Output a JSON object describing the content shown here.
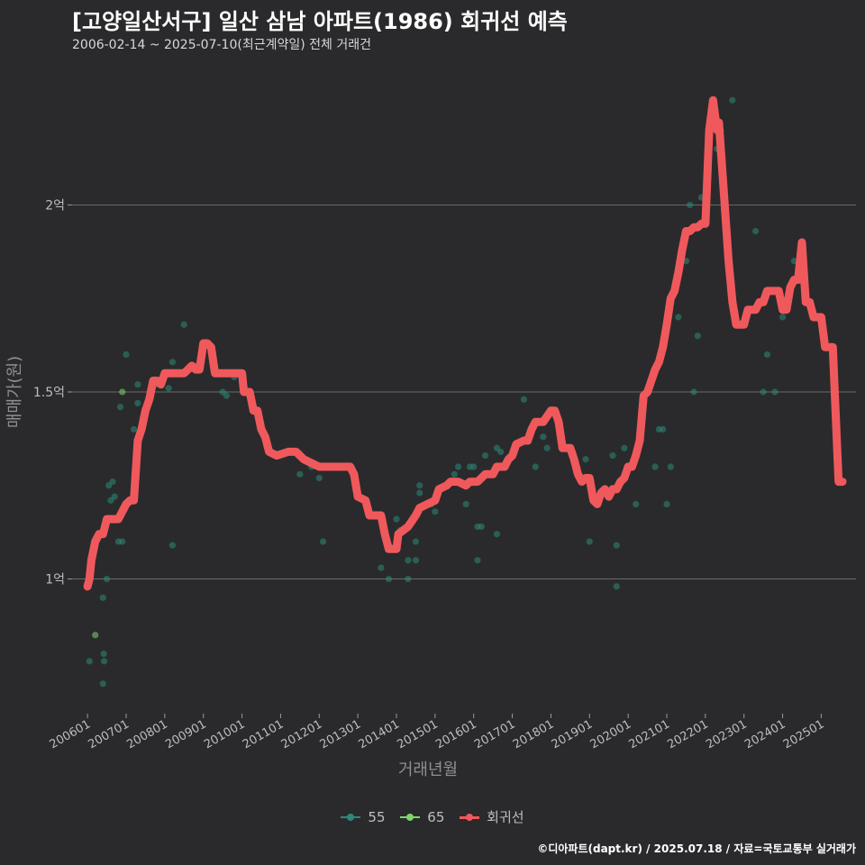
{
  "header": {
    "title": "[고양일산서구] 일산 삼남 아파트(1986) 회귀선 예측",
    "subtitle": "2006-02-14 ~ 2025-07-10(최근계약일) 전체 거래건"
  },
  "footer": {
    "credit": "©디아파트(dapt.kr) / 2025.07.18 / 자료=국토교통부 실거래가"
  },
  "legend": {
    "items": [
      {
        "label": "55",
        "color": "#2a8a7a"
      },
      {
        "label": "65",
        "color": "#7fd36b"
      },
      {
        "label": "회귀선",
        "color": "#f0595c"
      }
    ]
  },
  "chart_data": {
    "type": "scatter",
    "title": "[고양일산서구] 일산 삼남 아파트(1986) 회귀선 예측",
    "xlabel": "거래년월",
    "ylabel": "매매가(원)",
    "x_tick_labels": [
      "200601",
      "200701",
      "200801",
      "200901",
      "201001",
      "201101",
      "201201",
      "201301",
      "201401",
      "201501",
      "201601",
      "201701",
      "201801",
      "201901",
      "202001",
      "202101",
      "202201",
      "202301",
      "202401",
      "202501"
    ],
    "y_ticks": [
      {
        "value": 1.0,
        "label": "1억"
      },
      {
        "value": 1.5,
        "label": "1.5억"
      },
      {
        "value": 2.0,
        "label": "2억"
      }
    ],
    "xlim": [
      2005.6,
      2025.9
    ],
    "ylim": [
      0.64,
      2.36
    ],
    "y_unit": "억",
    "grid": true,
    "legend_position": "bottom",
    "series": [
      {
        "name": "55",
        "kind": "points",
        "color": "#2a8a7a",
        "points": [
          [
            2006.05,
            0.78
          ],
          [
            2006.4,
            0.72
          ],
          [
            2006.42,
            0.8
          ],
          [
            2006.43,
            0.78
          ],
          [
            2006.4,
            0.95
          ],
          [
            2006.5,
            1.0
          ],
          [
            2006.55,
            1.25
          ],
          [
            2006.6,
            1.21
          ],
          [
            2006.65,
            1.26
          ],
          [
            2006.7,
            1.22
          ],
          [
            2006.8,
            1.1
          ],
          [
            2006.85,
            1.46
          ],
          [
            2006.9,
            1.1
          ],
          [
            2007.0,
            1.6
          ],
          [
            2007.2,
            1.4
          ],
          [
            2007.3,
            1.52
          ],
          [
            2007.3,
            1.47
          ],
          [
            2007.5,
            1.44
          ],
          [
            2007.8,
            1.52
          ],
          [
            2008.1,
            1.51
          ],
          [
            2008.2,
            1.09
          ],
          [
            2008.2,
            1.58
          ],
          [
            2008.5,
            1.68
          ],
          [
            2008.8,
            1.57
          ],
          [
            2009.5,
            1.5
          ],
          [
            2009.6,
            1.49
          ],
          [
            2009.8,
            1.54
          ],
          [
            2011.5,
            1.28
          ],
          [
            2011.8,
            1.3
          ],
          [
            2012.0,
            1.27
          ],
          [
            2012.1,
            1.1
          ],
          [
            2013.3,
            1.17
          ],
          [
            2013.6,
            1.03
          ],
          [
            2013.8,
            1.0
          ],
          [
            2014.0,
            1.16
          ],
          [
            2014.1,
            1.13
          ],
          [
            2014.3,
            1.0
          ],
          [
            2014.3,
            1.05
          ],
          [
            2014.5,
            1.05
          ],
          [
            2014.5,
            1.1
          ],
          [
            2014.6,
            1.23
          ],
          [
            2014.6,
            1.25
          ],
          [
            2014.9,
            1.2
          ],
          [
            2015.0,
            1.18
          ],
          [
            2015.3,
            1.25
          ],
          [
            2015.5,
            1.28
          ],
          [
            2015.6,
            1.3
          ],
          [
            2015.8,
            1.2
          ],
          [
            2015.9,
            1.3
          ],
          [
            2016.0,
            1.3
          ],
          [
            2016.1,
            1.05
          ],
          [
            2016.1,
            1.14
          ],
          [
            2016.2,
            1.14
          ],
          [
            2016.3,
            1.33
          ],
          [
            2016.6,
            1.12
          ],
          [
            2016.6,
            1.35
          ],
          [
            2016.7,
            1.34
          ],
          [
            2017.3,
            1.48
          ],
          [
            2017.6,
            1.3
          ],
          [
            2017.8,
            1.38
          ],
          [
            2017.9,
            1.35
          ],
          [
            2018.9,
            1.32
          ],
          [
            2019.0,
            1.1
          ],
          [
            2019.6,
            1.33
          ],
          [
            2019.7,
            0.98
          ],
          [
            2019.7,
            1.09
          ],
          [
            2019.9,
            1.35
          ],
          [
            2020.0,
            1.3
          ],
          [
            2020.2,
            1.2
          ],
          [
            2020.3,
            1.37
          ],
          [
            2020.7,
            1.3
          ],
          [
            2020.8,
            1.4
          ],
          [
            2020.9,
            1.4
          ],
          [
            2021.0,
            1.2
          ],
          [
            2021.1,
            1.3
          ],
          [
            2021.3,
            1.7
          ],
          [
            2021.5,
            1.85
          ],
          [
            2021.6,
            2.0
          ],
          [
            2021.7,
            1.5
          ],
          [
            2021.8,
            1.65
          ],
          [
            2021.9,
            2.02
          ],
          [
            2022.3,
            2.15
          ],
          [
            2022.4,
            2.2
          ],
          [
            2022.7,
            2.28
          ],
          [
            2023.3,
            1.93
          ],
          [
            2023.5,
            1.5
          ],
          [
            2023.6,
            1.6
          ],
          [
            2023.8,
            1.5
          ],
          [
            2024.0,
            1.7
          ],
          [
            2024.3,
            1.85
          ]
        ]
      },
      {
        "name": "65",
        "kind": "points",
        "color": "#7fd36b",
        "points": [
          [
            2006.2,
            0.85
          ],
          [
            2006.9,
            1.5
          ]
        ]
      },
      {
        "name": "회귀선",
        "kind": "line",
        "color": "#f0595c",
        "points": [
          [
            2006.0,
            0.98
          ],
          [
            2006.05,
            1.0
          ],
          [
            2006.1,
            1.05
          ],
          [
            2006.2,
            1.1
          ],
          [
            2006.3,
            1.12
          ],
          [
            2006.4,
            1.12
          ],
          [
            2006.5,
            1.16
          ],
          [
            2006.6,
            1.16
          ],
          [
            2006.8,
            1.16
          ],
          [
            2006.9,
            1.18
          ],
          [
            2007.0,
            1.2
          ],
          [
            2007.1,
            1.21
          ],
          [
            2007.2,
            1.21
          ],
          [
            2007.3,
            1.37
          ],
          [
            2007.4,
            1.4
          ],
          [
            2007.5,
            1.45
          ],
          [
            2007.6,
            1.48
          ],
          [
            2007.7,
            1.53
          ],
          [
            2007.8,
            1.53
          ],
          [
            2007.9,
            1.52
          ],
          [
            2008.0,
            1.55
          ],
          [
            2008.2,
            1.55
          ],
          [
            2008.5,
            1.55
          ],
          [
            2008.6,
            1.56
          ],
          [
            2008.7,
            1.57
          ],
          [
            2008.8,
            1.56
          ],
          [
            2008.9,
            1.56
          ],
          [
            2009.0,
            1.63
          ],
          [
            2009.1,
            1.63
          ],
          [
            2009.2,
            1.62
          ],
          [
            2009.3,
            1.55
          ],
          [
            2009.6,
            1.55
          ],
          [
            2010.0,
            1.55
          ],
          [
            2010.05,
            1.5
          ],
          [
            2010.2,
            1.5
          ],
          [
            2010.3,
            1.45
          ],
          [
            2010.4,
            1.45
          ],
          [
            2010.5,
            1.4
          ],
          [
            2010.6,
            1.38
          ],
          [
            2010.7,
            1.34
          ],
          [
            2010.9,
            1.33
          ],
          [
            2011.2,
            1.34
          ],
          [
            2011.4,
            1.34
          ],
          [
            2011.5,
            1.33
          ],
          [
            2011.6,
            1.32
          ],
          [
            2011.8,
            1.31
          ],
          [
            2012.0,
            1.3
          ],
          [
            2012.2,
            1.3
          ],
          [
            2012.4,
            1.3
          ],
          [
            2012.6,
            1.3
          ],
          [
            2012.8,
            1.3
          ],
          [
            2012.9,
            1.28
          ],
          [
            2013.0,
            1.22
          ],
          [
            2013.2,
            1.21
          ],
          [
            2013.3,
            1.17
          ],
          [
            2013.6,
            1.17
          ],
          [
            2013.7,
            1.12
          ],
          [
            2013.8,
            1.08
          ],
          [
            2014.0,
            1.08
          ],
          [
            2014.05,
            1.12
          ],
          [
            2014.3,
            1.14
          ],
          [
            2014.5,
            1.17
          ],
          [
            2014.6,
            1.19
          ],
          [
            2014.8,
            1.2
          ],
          [
            2015.0,
            1.21
          ],
          [
            2015.1,
            1.24
          ],
          [
            2015.3,
            1.25
          ],
          [
            2015.4,
            1.26
          ],
          [
            2015.6,
            1.26
          ],
          [
            2015.8,
            1.25
          ],
          [
            2015.9,
            1.26
          ],
          [
            2016.1,
            1.26
          ],
          [
            2016.2,
            1.27
          ],
          [
            2016.3,
            1.28
          ],
          [
            2016.5,
            1.28
          ],
          [
            2016.6,
            1.3
          ],
          [
            2016.8,
            1.3
          ],
          [
            2016.9,
            1.32
          ],
          [
            2017.0,
            1.33
          ],
          [
            2017.1,
            1.36
          ],
          [
            2017.3,
            1.37
          ],
          [
            2017.4,
            1.37
          ],
          [
            2017.5,
            1.4
          ],
          [
            2017.6,
            1.42
          ],
          [
            2017.7,
            1.42
          ],
          [
            2017.8,
            1.42
          ],
          [
            2018.0,
            1.45
          ],
          [
            2018.1,
            1.45
          ],
          [
            2018.2,
            1.42
          ],
          [
            2018.3,
            1.35
          ],
          [
            2018.5,
            1.35
          ],
          [
            2018.6,
            1.32
          ],
          [
            2018.7,
            1.28
          ],
          [
            2018.8,
            1.26
          ],
          [
            2018.9,
            1.27
          ],
          [
            2019.0,
            1.27
          ],
          [
            2019.1,
            1.21
          ],
          [
            2019.2,
            1.2
          ],
          [
            2019.3,
            1.23
          ],
          [
            2019.4,
            1.24
          ],
          [
            2019.5,
            1.22
          ],
          [
            2019.6,
            1.24
          ],
          [
            2019.7,
            1.24
          ],
          [
            2019.8,
            1.26
          ],
          [
            2019.9,
            1.27
          ],
          [
            2020.0,
            1.3
          ],
          [
            2020.1,
            1.3
          ],
          [
            2020.2,
            1.33
          ],
          [
            2020.3,
            1.37
          ],
          [
            2020.4,
            1.49
          ],
          [
            2020.5,
            1.5
          ],
          [
            2020.6,
            1.53
          ],
          [
            2020.7,
            1.56
          ],
          [
            2020.8,
            1.58
          ],
          [
            2020.9,
            1.62
          ],
          [
            2021.0,
            1.68
          ],
          [
            2021.1,
            1.75
          ],
          [
            2021.2,
            1.77
          ],
          [
            2021.3,
            1.82
          ],
          [
            2021.4,
            1.88
          ],
          [
            2021.5,
            1.93
          ],
          [
            2021.6,
            1.93
          ],
          [
            2021.7,
            1.94
          ],
          [
            2021.8,
            1.94
          ],
          [
            2021.9,
            1.95
          ],
          [
            2022.0,
            1.95
          ],
          [
            2022.1,
            2.2
          ],
          [
            2022.2,
            2.28
          ],
          [
            2022.3,
            2.2
          ],
          [
            2022.35,
            2.22
          ],
          [
            2022.5,
            2.0
          ],
          [
            2022.6,
            1.85
          ],
          [
            2022.7,
            1.74
          ],
          [
            2022.8,
            1.68
          ],
          [
            2022.9,
            1.68
          ],
          [
            2023.0,
            1.68
          ],
          [
            2023.1,
            1.72
          ],
          [
            2023.2,
            1.72
          ],
          [
            2023.3,
            1.72
          ],
          [
            2023.4,
            1.74
          ],
          [
            2023.5,
            1.74
          ],
          [
            2023.6,
            1.77
          ],
          [
            2023.7,
            1.77
          ],
          [
            2023.8,
            1.77
          ],
          [
            2023.9,
            1.77
          ],
          [
            2024.0,
            1.72
          ],
          [
            2024.1,
            1.72
          ],
          [
            2024.2,
            1.78
          ],
          [
            2024.3,
            1.8
          ],
          [
            2024.4,
            1.8
          ],
          [
            2024.5,
            1.9
          ],
          [
            2024.55,
            1.82
          ],
          [
            2024.6,
            1.74
          ],
          [
            2024.7,
            1.74
          ],
          [
            2024.8,
            1.7
          ],
          [
            2024.9,
            1.7
          ],
          [
            2025.0,
            1.7
          ],
          [
            2025.1,
            1.62
          ],
          [
            2025.2,
            1.62
          ],
          [
            2025.3,
            1.62
          ],
          [
            2025.35,
            1.5
          ],
          [
            2025.45,
            1.26
          ],
          [
            2025.5,
            1.26
          ],
          [
            2025.55,
            1.26
          ]
        ]
      }
    ]
  }
}
